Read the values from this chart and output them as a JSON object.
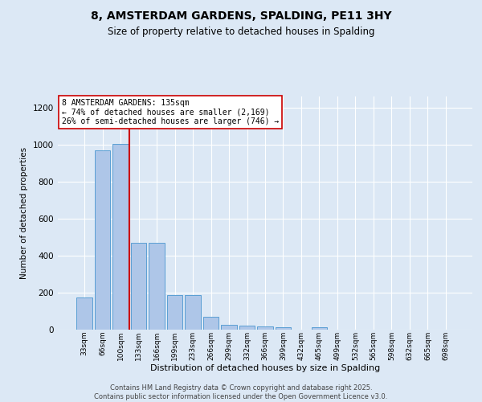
{
  "title": "8, AMSTERDAM GARDENS, SPALDING, PE11 3HY",
  "subtitle": "Size of property relative to detached houses in Spalding",
  "xlabel": "Distribution of detached houses by size in Spalding",
  "ylabel": "Number of detached properties",
  "categories": [
    "33sqm",
    "66sqm",
    "100sqm",
    "133sqm",
    "166sqm",
    "199sqm",
    "233sqm",
    "266sqm",
    "299sqm",
    "332sqm",
    "366sqm",
    "399sqm",
    "432sqm",
    "465sqm",
    "499sqm",
    "532sqm",
    "565sqm",
    "598sqm",
    "632sqm",
    "665sqm",
    "698sqm"
  ],
  "values": [
    175,
    970,
    1005,
    470,
    470,
    185,
    185,
    70,
    25,
    22,
    18,
    12,
    0,
    12,
    0,
    0,
    0,
    0,
    0,
    0,
    0
  ],
  "bar_color": "#aec6e8",
  "bar_edge_color": "#5a9fd4",
  "highlight_index": 3,
  "highlight_line_color": "#cc0000",
  "annotation_text": "8 AMSTERDAM GARDENS: 135sqm\n← 74% of detached houses are smaller (2,169)\n26% of semi-detached houses are larger (746) →",
  "annotation_box_color": "#ffffff",
  "annotation_box_edge_color": "#cc0000",
  "background_color": "#dce8f5",
  "grid_color": "#ffffff",
  "ylim": [
    0,
    1260
  ],
  "yticks": [
    0,
    200,
    400,
    600,
    800,
    1000,
    1200
  ],
  "footer_line1": "Contains HM Land Registry data © Crown copyright and database right 2025.",
  "footer_line2": "Contains public sector information licensed under the Open Government Licence v3.0."
}
